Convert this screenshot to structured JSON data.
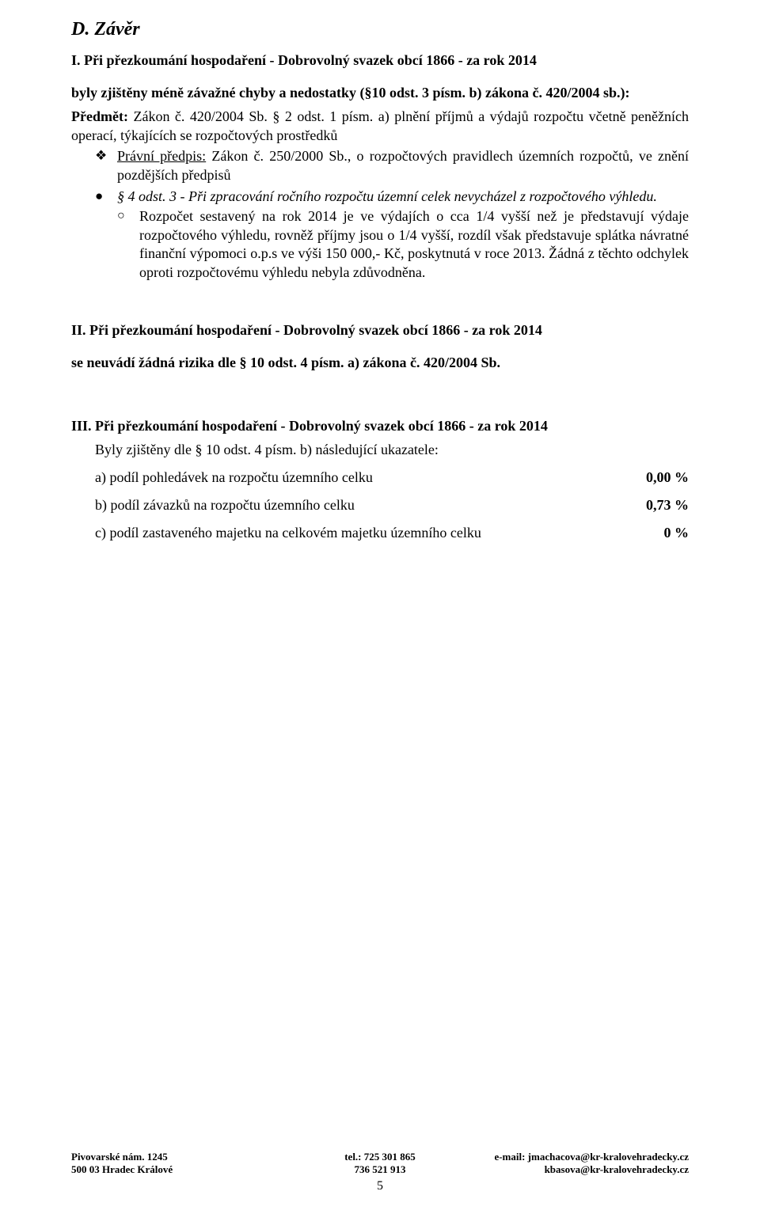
{
  "section_d": {
    "title": "D. Závěr",
    "part_i": {
      "heading": "I. Při přezkoumání hospodaření - Dobrovolný svazek obcí 1866 - za rok 2014",
      "finding_line": "byly zjištěny méně závažné chyby a nedostatky (§10 odst. 3 písm. b) zákona č. 420/2004 sb.):",
      "predmet_label": "Předmět:",
      "predmet_value": "Zákon č. 420/2004 Sb. § 2 odst. 1 písm. a) plnění příjmů a výdajů rozpočtu včetně peněžních operací, týkajících se rozpočtových prostředků",
      "diamond": {
        "underlined": "Právní předpis:",
        "rest": " Zákon č. 250/2000 Sb., o rozpočtových pravidlech územních rozpočtů, ve znění pozdějších předpisů"
      },
      "bullet_text": "§ 4 odst. 3 - Při zpracování ročního rozpočtu územní celek nevycházel z rozpočtového výhledu.",
      "circle_text": "Rozpočet sestavený na rok 2014 je ve výdajích o cca 1/4 vyšší než je představují výdaje rozpočtového výhledu, rovněž příjmy jsou o 1/4 vyšší, rozdíl však představuje splátka návratné finanční výpomoci o.p.s ve výši 150 000,- Kč, poskytnutá v roce 2013. Žádná z těchto odchylek oproti rozpočtovému výhledu nebyla zdůvodněna."
    },
    "part_ii": {
      "heading": "II. Při přezkoumání hospodaření - Dobrovolný svazek obcí 1866 - za rok 2014",
      "line": "se neuvádí žádná rizika dle § 10 odst. 4 písm. a) zákona č. 420/2004 Sb."
    },
    "part_iii": {
      "heading": "III. Při přezkoumání hospodaření - Dobrovolný svazek obcí 1866 -  za rok 2014",
      "sub_line": "Byly zjištěny dle § 10 odst. 4 písm. b) následující ukazatele:",
      "metrics": [
        {
          "label": "a) podíl pohledávek na rozpočtu územního celku",
          "value": "0,00 %"
        },
        {
          "label": "b) podíl závazků na rozpočtu územního celku",
          "value": "0,73 %"
        },
        {
          "label": "c) podíl zastaveného majetku na celkovém majetku územního celku",
          "value": "0 %"
        }
      ]
    }
  },
  "footer": {
    "left_line1": "Pivovarské nám. 1245",
    "left_line2": "500 03 Hradec Králové",
    "mid_line1": "tel.: 725 301 865",
    "mid_line2": "736 521 913",
    "right_line1": "e-mail: jmachacova@kr-kralovehradecky.cz",
    "right_line2": "kbasova@kr-kralovehradecky.cz",
    "page_number": "5"
  }
}
